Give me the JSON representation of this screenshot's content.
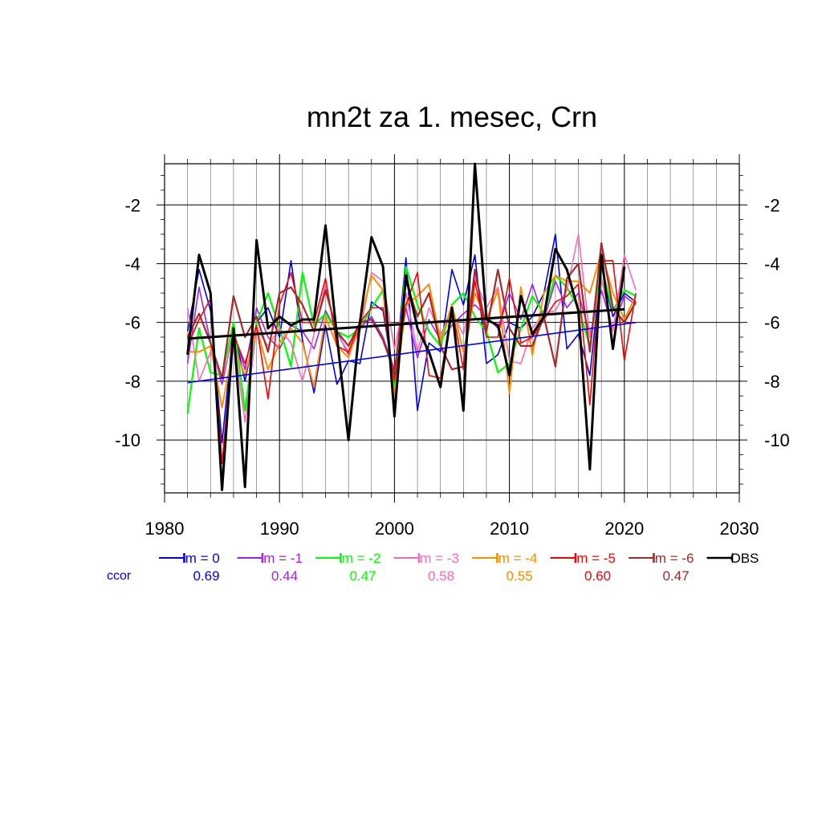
{
  "chart_data": {
    "type": "line",
    "title": "mn2t za 1. mesec, Crn",
    "xlabel": "",
    "ylabel": "",
    "xlim": [
      1980,
      2030
    ],
    "ylim": [
      -11.8,
      -0.6
    ],
    "x_ticks": [
      1980,
      1990,
      2000,
      2010,
      2020,
      2030
    ],
    "y_ticks": [
      -2,
      -4,
      -6,
      -8,
      -10
    ],
    "grid": true,
    "legend_position": "bottom",
    "ccor_label": "ccor",
    "series": [
      {
        "name": "lm = 0",
        "color": "#0000ff",
        "width": 1.6,
        "ccor": "0.69",
        "x": [
          1982,
          1983,
          1984,
          1985,
          1986,
          1987,
          1988,
          1989,
          1990,
          1991,
          1992,
          1993,
          1994,
          1995,
          1996,
          1997,
          1998,
          1999,
          2000,
          2001,
          2002,
          2003,
          2004,
          2005,
          2006,
          2007,
          2008,
          2009,
          2010,
          2011,
          2012,
          2013,
          2014,
          2015,
          2016,
          2017,
          2018,
          2019,
          2020,
          2021
        ],
        "y": [
          -6.3,
          -4.2,
          -5.6,
          -10.1,
          -6.2,
          -8.0,
          -6.0,
          -5.5,
          -6.5,
          -3.9,
          -6.6,
          -8.4,
          -6.1,
          -8.1,
          -7.3,
          -7.4,
          -5.3,
          -5.6,
          -8.0,
          -3.8,
          -9.0,
          -6.7,
          -7.0,
          -4.2,
          -5.4,
          -3.7,
          -7.4,
          -7.1,
          -6.0,
          -6.2,
          -5.8,
          -5.0,
          -3.0,
          -6.9,
          -6.4,
          -7.8,
          -4.1,
          -5.8,
          -5.0,
          -5.3
        ]
      },
      {
        "name": "lm = -1",
        "color": "#a020f0",
        "width": 1.6,
        "ccor": "0.44",
        "x": [
          1982,
          1983,
          1984,
          1985,
          1986,
          1987,
          1988,
          1989,
          1990,
          1991,
          1992,
          1993,
          1994,
          1995,
          1996,
          1997,
          1998,
          1999,
          2000,
          2001,
          2002,
          2003,
          2004,
          2005,
          2006,
          2007,
          2008,
          2009,
          2010,
          2011,
          2012,
          2013,
          2014,
          2015,
          2016,
          2017,
          2018,
          2019,
          2020,
          2021
        ],
        "y": [
          -7.4,
          -4.8,
          -6.7,
          -8.1,
          -6.3,
          -7.6,
          -5.5,
          -6.5,
          -6.9,
          -6.1,
          -6.3,
          -6.9,
          -5.6,
          -6.3,
          -7.1,
          -6.2,
          -5.8,
          -6.5,
          -7.6,
          -5.5,
          -7.2,
          -5.9,
          -6.6,
          -6.1,
          -5.7,
          -5.4,
          -5.8,
          -6.2,
          -5.0,
          -5.9,
          -4.7,
          -5.9,
          -4.6,
          -5.5,
          -5.0,
          -6.4,
          -4.9,
          -6.2,
          -5.1,
          -5.4
        ]
      },
      {
        "name": "lm = -2",
        "color": "#00ff00",
        "width": 2.2,
        "ccor": "0.47",
        "x": [
          1982,
          1983,
          1984,
          1985,
          1986,
          1987,
          1988,
          1989,
          1990,
          1991,
          1992,
          1993,
          1994,
          1995,
          1996,
          1997,
          1998,
          1999,
          2000,
          2001,
          2002,
          2003,
          2004,
          2005,
          2006,
          2007,
          2008,
          2009,
          2010,
          2011,
          2012,
          2013,
          2014,
          2015,
          2016,
          2017,
          2018,
          2019,
          2020,
          2021
        ],
        "y": [
          -9.1,
          -6.2,
          -7.7,
          -7.8,
          -6.0,
          -9.0,
          -6.0,
          -5.0,
          -6.2,
          -7.5,
          -4.3,
          -6.1,
          -5.7,
          -6.3,
          -6.5,
          -6.2,
          -5.5,
          -4.9,
          -8.4,
          -4.1,
          -5.4,
          -6.3,
          -6.8,
          -5.4,
          -5.0,
          -5.8,
          -6.3,
          -7.7,
          -7.4,
          -6.2,
          -5.1,
          -5.7,
          -4.4,
          -4.8,
          -5.5,
          -6.8,
          -4.1,
          -5.6,
          -4.9,
          -5.1
        ]
      },
      {
        "name": "lm = -3",
        "color": "#ff69b4",
        "width": 1.6,
        "ccor": "0.58",
        "x": [
          1982,
          1983,
          1984,
          1985,
          1986,
          1987,
          1988,
          1989,
          1990,
          1991,
          1992,
          1993,
          1994,
          1995,
          1996,
          1997,
          1998,
          1999,
          2000,
          2001,
          2002,
          2003,
          2004,
          2005,
          2006,
          2007,
          2008,
          2009,
          2010,
          2011,
          2012,
          2013,
          2014,
          2015,
          2016,
          2017,
          2018,
          2019,
          2020,
          2021
        ],
        "y": [
          -5.5,
          -8.0,
          -7.0,
          -7.9,
          -6.5,
          -9.4,
          -6.2,
          -6.8,
          -6.2,
          -6.7,
          -8.0,
          -6.4,
          -4.7,
          -6.4,
          -7.0,
          -6.3,
          -4.3,
          -4.6,
          -6.9,
          -5.0,
          -7.0,
          -5.5,
          -6.4,
          -5.7,
          -6.4,
          -4.5,
          -5.5,
          -4.8,
          -7.3,
          -7.4,
          -6.2,
          -5.7,
          -5.6,
          -4.9,
          -3.0,
          -6.5,
          -4.5,
          -6.3,
          -3.7,
          -4.9
        ]
      },
      {
        "name": "lm = -4",
        "color": "#ff8c00",
        "width": 2.0,
        "ccor": "0.55",
        "x": [
          1982,
          1983,
          1984,
          1985,
          1986,
          1987,
          1988,
          1989,
          1990,
          1991,
          1992,
          1993,
          1994,
          1995,
          1996,
          1997,
          1998,
          1999,
          2000,
          2001,
          2002,
          2003,
          2004,
          2005,
          2006,
          2007,
          2008,
          2009,
          2010,
          2011,
          2012,
          2013,
          2014,
          2015,
          2016,
          2017,
          2018,
          2019,
          2020,
          2021
        ],
        "y": [
          -7.0,
          -7.0,
          -6.8,
          -8.9,
          -6.8,
          -7.8,
          -6.2,
          -7.6,
          -6.7,
          -6.2,
          -6.7,
          -8.2,
          -5.8,
          -6.8,
          -7.2,
          -6.0,
          -4.4,
          -4.9,
          -8.6,
          -5.4,
          -5.1,
          -4.7,
          -6.6,
          -5.4,
          -7.0,
          -5.0,
          -5.9,
          -4.9,
          -8.4,
          -4.8,
          -7.1,
          -5.0,
          -4.4,
          -4.6,
          -4.6,
          -5.0,
          -3.6,
          -5.0,
          -5.9,
          -5.1
        ]
      },
      {
        "name": "lm = -5",
        "color": "#ff0000",
        "width": 1.6,
        "ccor": "0.60",
        "x": [
          1982,
          1983,
          1984,
          1985,
          1986,
          1987,
          1988,
          1989,
          1990,
          1991,
          1992,
          1993,
          1994,
          1995,
          1996,
          1997,
          1998,
          1999,
          2000,
          2001,
          2002,
          2003,
          2004,
          2005,
          2006,
          2007,
          2008,
          2009,
          2010,
          2011,
          2012,
          2013,
          2014,
          2015,
          2016,
          2017,
          2018,
          2019,
          2020,
          2021
        ],
        "y": [
          -6.8,
          -5.9,
          -5.2,
          -10.8,
          -6.4,
          -7.4,
          -6.1,
          -8.6,
          -5.4,
          -4.3,
          -6.0,
          -6.0,
          -4.5,
          -6.8,
          -7.0,
          -6.0,
          -5.5,
          -5.5,
          -8.0,
          -5.4,
          -4.3,
          -7.8,
          -7.9,
          -5.5,
          -7.6,
          -4.6,
          -6.5,
          -6.5,
          -4.5,
          -6.7,
          -6.5,
          -5.9,
          -5.3,
          -5.1,
          -4.7,
          -8.8,
          -3.9,
          -3.9,
          -7.3,
          -5.0
        ]
      },
      {
        "name": "lm = -6",
        "color": "#a52a2a",
        "width": 2.2,
        "ccor": "0.47",
        "x": [
          1982,
          1983,
          1984,
          1985,
          1986,
          1987,
          1988,
          1989,
          1990,
          1991,
          1992,
          1993,
          1994,
          1995,
          1996,
          1997,
          1998,
          1999,
          2000,
          2001,
          2002,
          2003,
          2004,
          2005,
          2006,
          2007,
          2008,
          2009,
          2010,
          2011,
          2012,
          2013,
          2014,
          2015,
          2016,
          2017,
          2018,
          2019,
          2020,
          2021
        ],
        "y": [
          -6.5,
          -5.7,
          -6.7,
          -7.9,
          -5.1,
          -6.5,
          -5.8,
          -7.0,
          -5.0,
          -4.8,
          -5.4,
          -6.3,
          -4.9,
          -6.3,
          -6.8,
          -6.0,
          -5.9,
          -6.6,
          -7.7,
          -4.6,
          -5.8,
          -5.0,
          -6.8,
          -7.6,
          -7.5,
          -4.2,
          -6.3,
          -4.2,
          -6.2,
          -6.8,
          -6.8,
          -5.8,
          -7.5,
          -4.5,
          -4.0,
          -7.0,
          -3.3,
          -5.5,
          -6.0,
          -5.3
        ]
      },
      {
        "name": "OBS",
        "color": "#000000",
        "width": 3.0,
        "ccor": "",
        "x": [
          1982,
          1983,
          1984,
          1985,
          1986,
          1987,
          1988,
          1989,
          1990,
          1991,
          1992,
          1993,
          1994,
          1995,
          1996,
          1997,
          1998,
          1999,
          2000,
          2001,
          2002,
          2003,
          2004,
          2005,
          2006,
          2007,
          2008,
          2009,
          2010,
          2011,
          2012,
          2013,
          2014,
          2015,
          2016,
          2017,
          2018,
          2019,
          2020
        ],
        "y": [
          -7.1,
          -3.7,
          -5.0,
          -11.7,
          -6.2,
          -11.6,
          -3.2,
          -6.2,
          -5.8,
          -6.1,
          -5.9,
          -5.9,
          -2.7,
          -6.5,
          -10.0,
          -6.0,
          -3.1,
          -4.1,
          -9.2,
          -4.4,
          -6.2,
          -7.0,
          -8.2,
          -5.5,
          -9.0,
          -0.6,
          -5.9,
          -6.1,
          -7.8,
          -5.1,
          -6.4,
          -5.8,
          -3.5,
          -4.2,
          -5.6,
          -11.0,
          -3.7,
          -6.9,
          -4.1
        ]
      }
    ],
    "trend_lines": [
      {
        "color": "#0000ff",
        "width": 1.6,
        "x": [
          1982,
          2021
        ],
        "y": [
          -8.05,
          -6.0
        ]
      },
      {
        "color": "#000000",
        "width": 3.0,
        "x": [
          1982,
          2020
        ],
        "y": [
          -6.55,
          -5.55
        ]
      }
    ]
  }
}
